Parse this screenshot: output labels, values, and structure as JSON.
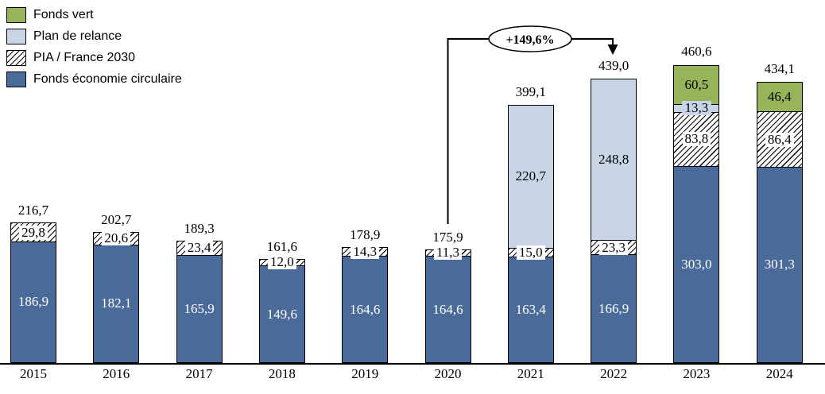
{
  "legend": {
    "items": [
      {
        "label": "Fonds vert",
        "key": "vert",
        "color": "#98b45a"
      },
      {
        "label": "Plan de relance",
        "key": "relance",
        "color": "#c9d5e7"
      },
      {
        "label": "PIA / France 2030",
        "key": "pia",
        "pattern": "diagonal-hatch"
      },
      {
        "label": "Fonds économie circulaire",
        "key": "fec",
        "color": "#4a6b99"
      }
    ]
  },
  "annotation": {
    "label": "+149,6%",
    "from_year": "2020",
    "to_year": "2022"
  },
  "chart_data": {
    "type": "bar",
    "stacked": true,
    "categories": [
      "2015",
      "2016",
      "2017",
      "2018",
      "2019",
      "2020",
      "2021",
      "2022",
      "2023",
      "2024"
    ],
    "series": [
      {
        "name": "Fonds économie circulaire",
        "key": "fec",
        "color": "#4a6b99",
        "values": [
          186.9,
          182.1,
          165.9,
          149.6,
          164.6,
          164.6,
          163.4,
          166.9,
          303.0,
          301.3
        ]
      },
      {
        "name": "PIA / France 2030",
        "key": "pia",
        "pattern": "diagonal-hatch",
        "values": [
          29.8,
          20.6,
          23.4,
          12.0,
          14.3,
          11.3,
          15.0,
          23.3,
          83.8,
          86.4
        ]
      },
      {
        "name": "Plan de relance",
        "key": "relance",
        "color": "#c9d5e7",
        "values": [
          null,
          null,
          null,
          null,
          null,
          null,
          220.7,
          248.8,
          13.3,
          null
        ]
      },
      {
        "name": "Fonds vert",
        "key": "vert",
        "color": "#98b45a",
        "values": [
          null,
          null,
          null,
          null,
          null,
          null,
          null,
          null,
          60.5,
          46.4
        ]
      }
    ],
    "totals": [
      "216,7",
      "202,7",
      "189,3",
      "161,6",
      "178,9",
      "175,9",
      "399,1",
      "439,0",
      "460,6",
      "434,1"
    ],
    "decimal_separator": ",",
    "y_axis_visible": false,
    "grid": false,
    "legend_position": "top-left",
    "annotations": [
      {
        "text": "+149,6%",
        "type": "elbow-arrow",
        "from": "2020",
        "to": "2022"
      }
    ]
  }
}
